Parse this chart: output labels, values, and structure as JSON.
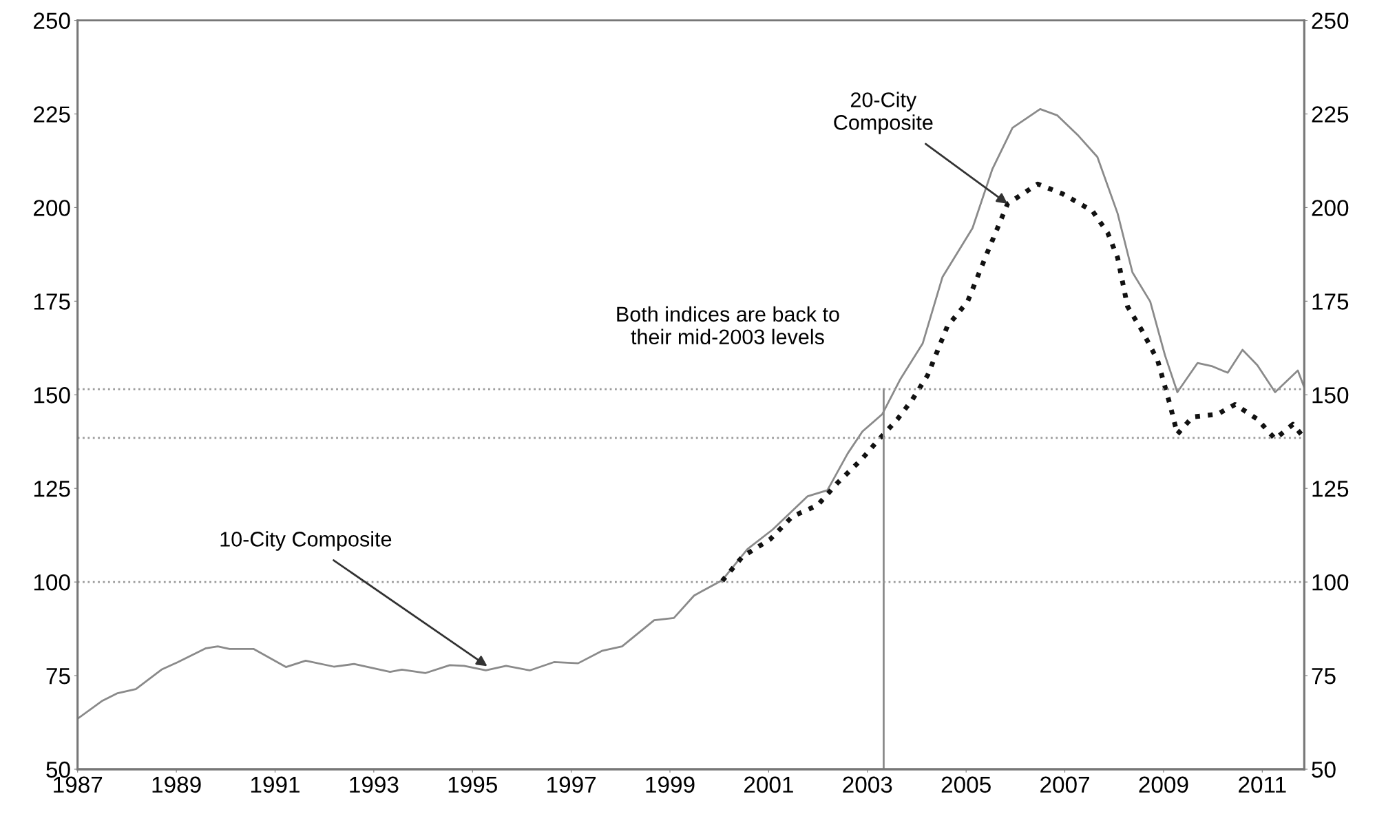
{
  "chart_data": {
    "type": "line",
    "xlim": [
      1987,
      2011.85
    ],
    "xticks": [
      1987,
      1989,
      1991,
      1993,
      1995,
      1997,
      1999,
      2001,
      2003,
      2005,
      2007,
      2009,
      2011
    ],
    "ylim": [
      50,
      250
    ],
    "yticks": [
      50,
      75,
      100,
      125,
      150,
      175,
      200,
      225,
      250
    ],
    "y2lim": [
      50,
      250
    ],
    "y2ticks": [
      50,
      75,
      100,
      125,
      150,
      175,
      200,
      225,
      250
    ],
    "grid": false,
    "legend": false,
    "series": [
      {
        "color": "#8a8a8a",
        "line_style": "solid",
        "x": [
          1987.0,
          1987.49,
          1987.81,
          1988.18,
          1988.7,
          1989.03,
          1989.6,
          1989.84,
          1990.08,
          1990.57,
          1991.22,
          1991.62,
          1992.19,
          1992.6,
          1993.33,
          1993.57,
          1994.05,
          1994.54,
          1994.83,
          1995.27,
          1995.68,
          1996.16,
          1996.65,
          1997.14,
          1997.62,
          1998.03,
          1998.68,
          1999.08,
          1999.49,
          2000.06,
          2000.57,
          2001.08,
          2001.79,
          2002.19,
          2002.6,
          2002.9,
          2003.3,
          2003.66,
          2004.12,
          2004.52,
          2005.13,
          2005.53,
          2005.94,
          2006.5,
          2006.85,
          2007.26,
          2007.66,
          2008.07,
          2008.37,
          2008.73,
          2009.03,
          2009.28,
          2009.69,
          2009.99,
          2010.3,
          2010.6,
          2010.9,
          2011.26,
          2011.72,
          2011.85
        ],
        "values": [
          63.5,
          68.2,
          70.3,
          71.4,
          76.6,
          78.6,
          82.3,
          82.8,
          82.1,
          82.1,
          77.3,
          79,
          77.4,
          78.1,
          76,
          76.6,
          75.7,
          77.8,
          77.6,
          76.4,
          77.6,
          76.4,
          78.6,
          78.3,
          81.6,
          82.8,
          89.8,
          90.4,
          96.4,
          100.5,
          108.8,
          114,
          122.9,
          124.5,
          134.3,
          140.2,
          144.8,
          154,
          163.7,
          181.4,
          194.5,
          210.2,
          221.3,
          226.3,
          224.6,
          219.4,
          213.5,
          198.4,
          182.7,
          174.9,
          160.5,
          150.7,
          158.5,
          157.6,
          155.9,
          162,
          157.9,
          150.7,
          156.5,
          152
        ]
      },
      {
        "color": "#111111",
        "line_style": "dotted",
        "x": [
          2000.06,
          2000.47,
          2001.03,
          2001.48,
          2001.99,
          2002.39,
          2002.9,
          2003.2,
          2003.61,
          2003.91,
          2004.22,
          2004.62,
          2005.03,
          2005.43,
          2005.84,
          2006.45,
          2006.95,
          2007.56,
          2007.87,
          2008.07,
          2008.27,
          2008.57,
          2008.88,
          2009.13,
          2009.28,
          2009.59,
          2010.09,
          2010.45,
          2010.9,
          2011.26,
          2011.62,
          2011.85
        ],
        "values": [
          100.3,
          106.8,
          111.4,
          117.5,
          120.5,
          126.4,
          133,
          137.6,
          143.5,
          148.7,
          155.2,
          168.3,
          174.9,
          188,
          201,
          206.3,
          203.7,
          199.1,
          193.2,
          186.6,
          173.6,
          167,
          159.2,
          147.4,
          139.5,
          144.1,
          144.8,
          147.4,
          143.5,
          138.2,
          142.1,
          138.5
        ]
      },
      {
        "color": "#8a8a8a",
        "line_style": "solid",
        "x": [
          2003.33,
          2003.33
        ],
        "values": [
          50,
          151.5
        ]
      }
    ],
    "ref_lines": [
      {
        "axis": "y",
        "value": 100,
        "color": "#9a9a9a",
        "line_style": "dotted"
      },
      {
        "axis": "y",
        "value": 151.5,
        "color": "#9a9a9a",
        "line_style": "dotted"
      },
      {
        "axis": "y",
        "value": 138.5,
        "color": "#9a9a9a",
        "line_style": "dotted"
      }
    ],
    "annotations": [
      {
        "text": "10-City Composite",
        "x": 1995.3,
        "y": 77.5
      },
      {
        "text": "20-City\nComposite",
        "x": 2005.84,
        "y": 201
      },
      "Both indices are back to\ntheir mid-2003 levels"
    ]
  }
}
